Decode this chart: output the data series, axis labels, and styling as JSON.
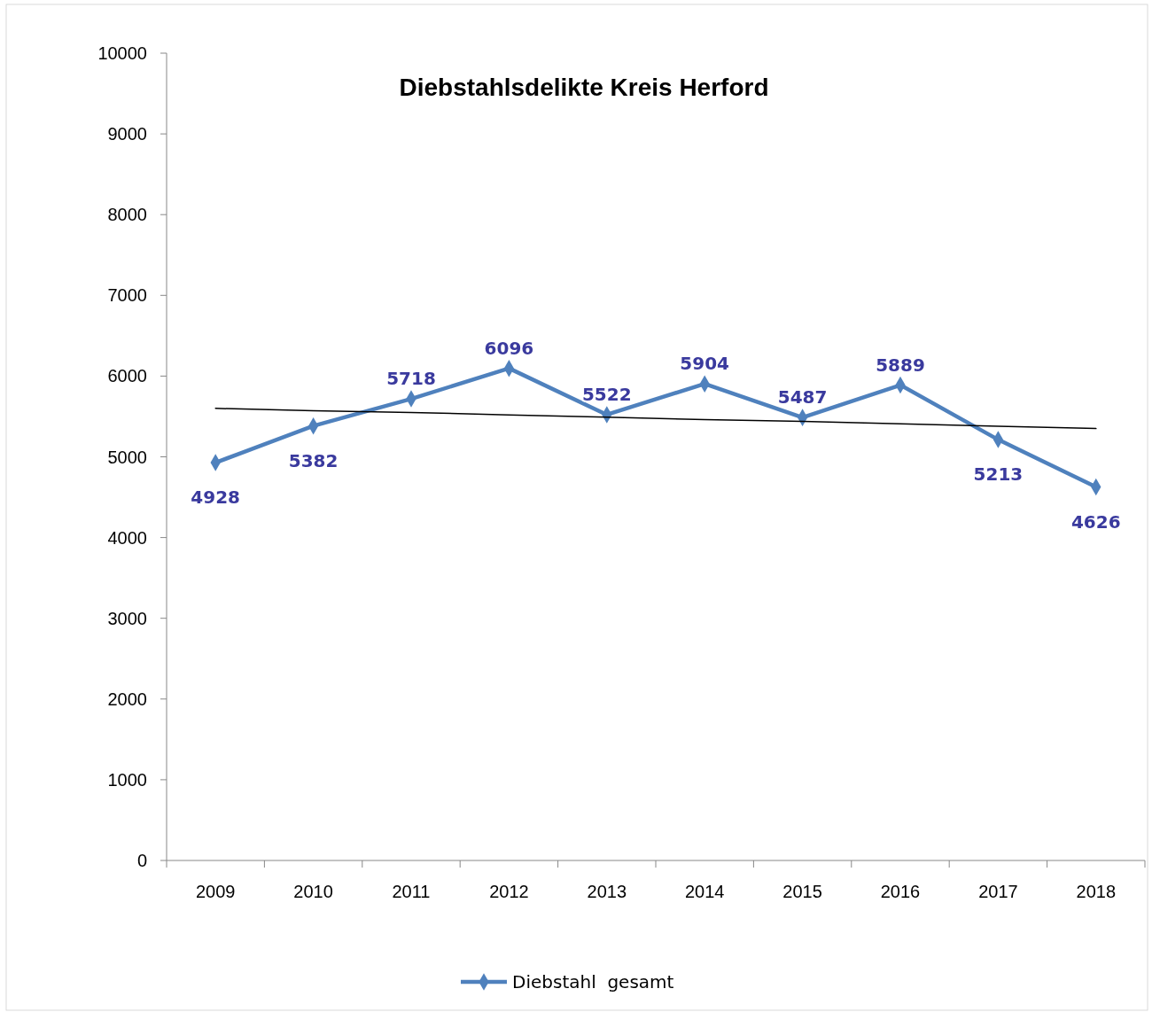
{
  "chart_data": {
    "type": "line",
    "title": "Diebstahlsdelikte Kreis Herford",
    "categories": [
      "2009",
      "2010",
      "2011",
      "2012",
      "2013",
      "2014",
      "2015",
      "2016",
      "2017",
      "2018"
    ],
    "series": [
      {
        "name": "Diebstahl  gesamt",
        "color": "#4f81bd",
        "values": [
          4928,
          5382,
          5718,
          6096,
          5522,
          5904,
          5487,
          5889,
          5213,
          4626
        ],
        "value_labels": [
          "4928",
          "5382",
          "5718",
          "6096",
          "5522",
          "5904",
          "5487",
          "5889",
          "5213",
          "4626"
        ]
      },
      {
        "type": "line",
        "color": "#000000",
        "values": [
          5600,
          5570,
          5550,
          5520,
          5490,
          5460,
          5440,
          5410,
          5380,
          5350
        ],
        "marker": "none"
      }
    ],
    "ylim": [
      0,
      10000
    ],
    "yticks": [
      0,
      1000,
      2000,
      3000,
      4000,
      5000,
      6000,
      7000,
      8000,
      9000,
      10000
    ],
    "marker": "diamond",
    "legend": "bottom",
    "grid": false
  }
}
